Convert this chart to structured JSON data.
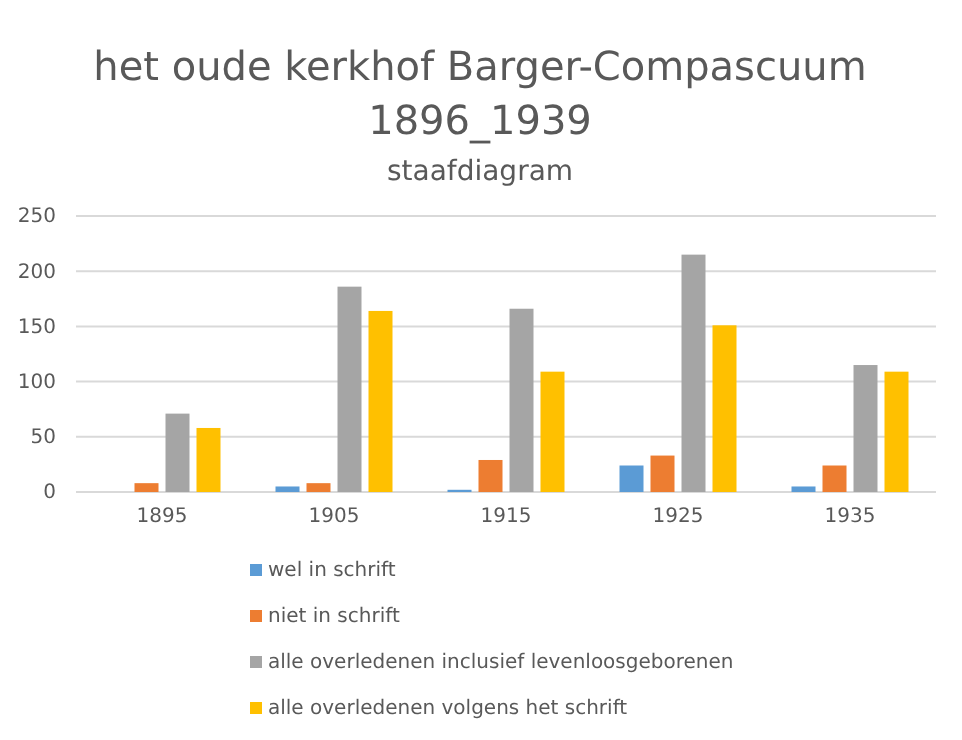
{
  "chart_data": {
    "type": "bar",
    "title": "het oude kerkhof Barger-Compascuum 1896_1939",
    "subtitle": "staafdiagram",
    "categories": [
      "1895",
      "1905",
      "1915",
      "1925",
      "1935"
    ],
    "series": [
      {
        "name": "wel in schrift",
        "color": "#5b9bd5",
        "values": [
          0,
          5,
          2,
          24,
          5
        ]
      },
      {
        "name": "niet in schrift",
        "color": "#ed7d31",
        "values": [
          8,
          8,
          29,
          33,
          24
        ]
      },
      {
        "name": "alle overledenen inclusief levenloosgeborenen",
        "color": "#a5a5a5",
        "values": [
          71,
          186,
          166,
          215,
          115
        ]
      },
      {
        "name": "alle overledenen volgens het schrift",
        "color": "#ffc000",
        "values": [
          58,
          164,
          109,
          151,
          109
        ]
      }
    ],
    "ylim": [
      0,
      250
    ],
    "yticks": [
      0,
      50,
      100,
      150,
      200,
      250
    ],
    "grid": "y",
    "legend": "bottom"
  }
}
